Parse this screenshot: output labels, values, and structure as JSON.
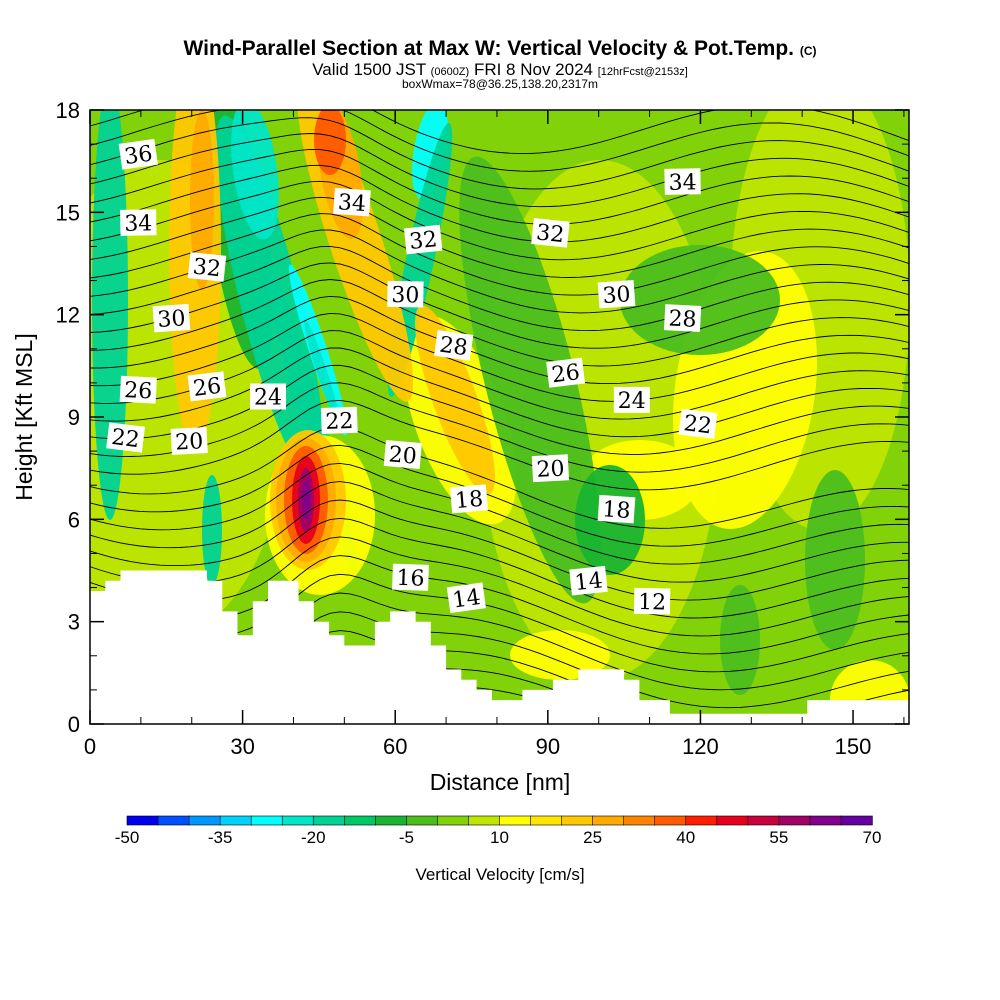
{
  "header": {
    "title": "Wind-Parallel Section at Max W: Vertical Velocity & Pot.Temp.",
    "title_mark": "(C)",
    "valid_prefix": "Valid 1500 JST",
    "valid_utc": "(0600Z)",
    "valid_date": "FRI 8 Nov 2024",
    "forecast": "[12hrFcst@2153z]",
    "boxline": "boxWmax=78@36.25,138.20,2317m"
  },
  "chart_data": {
    "type": "heatmap",
    "xlabel": "Distance [nm]",
    "ylabel": "Height [Kft MSL]",
    "xlim": [
      0,
      161
    ],
    "ylim": [
      0,
      18
    ],
    "x_ticks": [
      "0",
      "30",
      "60",
      "90",
      "120",
      "150"
    ],
    "y_ticks": [
      "0",
      "3",
      "6",
      "9",
      "12",
      "15",
      "18"
    ],
    "colorbar": {
      "title": "Vertical Velocity [cm/s]",
      "tick_labels": [
        "-50",
        "-35",
        "-20",
        "-5",
        "10",
        "25",
        "40",
        "55",
        "70"
      ],
      "colors": [
        "#0000f0",
        "#0050ff",
        "#0096ff",
        "#00d2ff",
        "#00ffff",
        "#00e6c8",
        "#00d296",
        "#00c864",
        "#19b432",
        "#4bbe1e",
        "#82d20a",
        "#bee600",
        "#ffff00",
        "#ffe600",
        "#ffc800",
        "#ffaa00",
        "#ff8200",
        "#ff5a00",
        "#ff1e00",
        "#e6001e",
        "#c8003c",
        "#a00064",
        "#82008c",
        "#6400a0"
      ]
    },
    "theta_contour_labels": [
      {
        "value": "36",
        "x": 9.5,
        "y": 16.7
      },
      {
        "value": "34",
        "x": 9.5,
        "y": 14.7
      },
      {
        "value": "32",
        "x": 23,
        "y": 13.4
      },
      {
        "value": "30",
        "x": 16,
        "y": 11.9
      },
      {
        "value": "26",
        "x": 9.5,
        "y": 9.8
      },
      {
        "value": "26",
        "x": 23,
        "y": 9.9
      },
      {
        "value": "24",
        "x": 35,
        "y": 9.6
      },
      {
        "value": "22",
        "x": 7,
        "y": 8.4
      },
      {
        "value": "20",
        "x": 19.5,
        "y": 8.3
      },
      {
        "value": "34",
        "x": 51.5,
        "y": 15.3
      },
      {
        "value": "32",
        "x": 65.5,
        "y": 14.2
      },
      {
        "value": "30",
        "x": 62,
        "y": 12.6
      },
      {
        "value": "28",
        "x": 71.5,
        "y": 11.1
      },
      {
        "value": "22",
        "x": 49,
        "y": 8.9
      },
      {
        "value": "20",
        "x": 61.5,
        "y": 7.9
      },
      {
        "value": "18",
        "x": 74.5,
        "y": 6.6
      },
      {
        "value": "16",
        "x": 63,
        "y": 4.3
      },
      {
        "value": "14",
        "x": 74,
        "y": 3.7
      },
      {
        "value": "34",
        "x": 116.5,
        "y": 15.9
      },
      {
        "value": "32",
        "x": 90.5,
        "y": 14.4
      },
      {
        "value": "30",
        "x": 103.5,
        "y": 12.6
      },
      {
        "value": "28",
        "x": 116.5,
        "y": 11.9
      },
      {
        "value": "26",
        "x": 93.5,
        "y": 10.3
      },
      {
        "value": "24",
        "x": 106.5,
        "y": 9.5
      },
      {
        "value": "22",
        "x": 119.5,
        "y": 8.8
      },
      {
        "value": "20",
        "x": 90.5,
        "y": 7.5
      },
      {
        "value": "18",
        "x": 103.5,
        "y": 6.3
      },
      {
        "value": "14",
        "x": 98,
        "y": 4.2
      },
      {
        "value": "12",
        "x": 110.5,
        "y": 3.6
      }
    ],
    "terrain_profile": [
      [
        0,
        3.9
      ],
      [
        3,
        3.9
      ],
      [
        3,
        4.2
      ],
      [
        6,
        4.2
      ],
      [
        6,
        4.5
      ],
      [
        23,
        4.5
      ],
      [
        23,
        4.2
      ],
      [
        26,
        4.2
      ],
      [
        26,
        3.3
      ],
      [
        29,
        3.3
      ],
      [
        29,
        2.6
      ],
      [
        32,
        2.6
      ],
      [
        32,
        3.6
      ],
      [
        35,
        3.6
      ],
      [
        35,
        4.2
      ],
      [
        41,
        4.2
      ],
      [
        41,
        3.6
      ],
      [
        44,
        3.6
      ],
      [
        44,
        3.0
      ],
      [
        47,
        3.0
      ],
      [
        47,
        2.6
      ],
      [
        50,
        2.6
      ],
      [
        50,
        2.3
      ],
      [
        56,
        2.3
      ],
      [
        56,
        3.0
      ],
      [
        59,
        3.0
      ],
      [
        59,
        3.3
      ],
      [
        64,
        3.3
      ],
      [
        64,
        3.0
      ],
      [
        67,
        3.0
      ],
      [
        67,
        2.3
      ],
      [
        70,
        2.3
      ],
      [
        70,
        1.6
      ],
      [
        73,
        1.6
      ],
      [
        73,
        1.3
      ],
      [
        76,
        1.3
      ],
      [
        76,
        1.0
      ],
      [
        79,
        1.0
      ],
      [
        79,
        0.7
      ],
      [
        85,
        0.7
      ],
      [
        85,
        1.0
      ],
      [
        91,
        1.0
      ],
      [
        91,
        1.3
      ],
      [
        96,
        1.3
      ],
      [
        96,
        1.6
      ],
      [
        105,
        1.6
      ],
      [
        105,
        1.3
      ],
      [
        108,
        1.3
      ],
      [
        108,
        0.7
      ],
      [
        114,
        0.7
      ],
      [
        114,
        0.3
      ],
      [
        141,
        0.3
      ],
      [
        141,
        0.7
      ],
      [
        161,
        0.7
      ]
    ]
  }
}
